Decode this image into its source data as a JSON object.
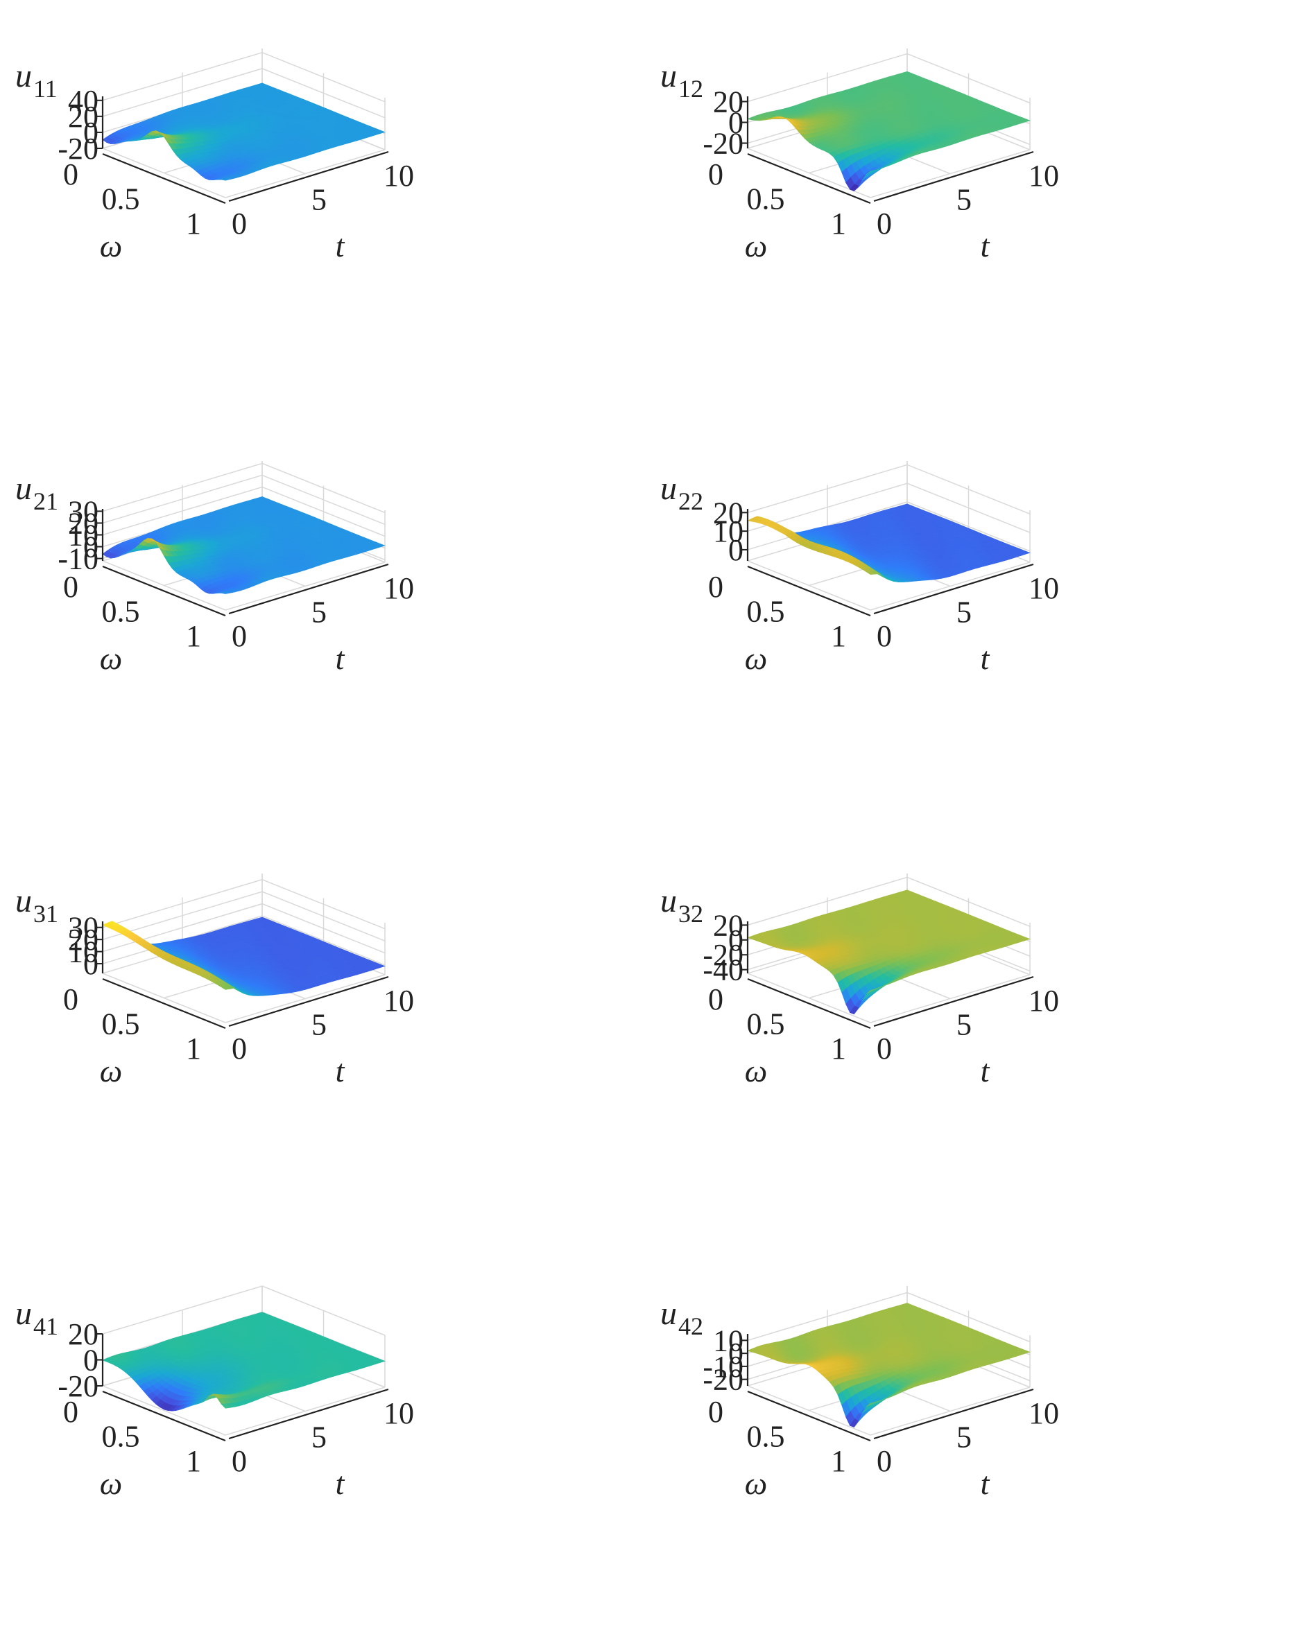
{
  "colormap": [
    "#3e26a8",
    "#4353e0",
    "#2f7df8",
    "#1ba8d5",
    "#25bda0",
    "#7abf55",
    "#d4ba2f",
    "#fcc83a",
    "#f9fb15"
  ],
  "chart_data": [
    {
      "id": "u11",
      "type": "surface3d",
      "zlabel": {
        "main": "u",
        "sub": "11"
      },
      "xlabel": "ω",
      "ylabel": "t",
      "omega_ticks": [
        "0",
        "0.5",
        "1"
      ],
      "t_ticks": [
        "0",
        "5",
        "10"
      ],
      "z_ticks": [
        "40",
        "20",
        "0",
        "-20"
      ],
      "z_tick_values": [
        40,
        20,
        0,
        -20
      ],
      "zlim": [
        -20,
        45
      ],
      "shape": "bump",
      "peak": {
        "omega": 0.45,
        "z": 30
      },
      "trough_z": -17,
      "edge_dip_z": -20,
      "plateau_z": 2,
      "plateau_cbase": 0.35
    },
    {
      "id": "u12",
      "type": "surface3d",
      "zlabel": {
        "main": "u",
        "sub": "12"
      },
      "xlabel": "ω",
      "ylabel": "t",
      "omega_ticks": [
        "0",
        "0.5",
        "1"
      ],
      "t_ticks": [
        "0",
        "5",
        "10"
      ],
      "z_ticks": [
        "20",
        "0",
        "-20"
      ],
      "z_tick_values": [
        20,
        0,
        -20
      ],
      "zlim": [
        -25,
        25
      ],
      "shape": "wave",
      "peak": {
        "omega": 0.3,
        "z": 18
      },
      "trough_z": -28,
      "edge_dip_z": -30,
      "plateau_z": 3,
      "plateau_cbase": 0.5
    },
    {
      "id": "u21",
      "type": "surface3d",
      "zlabel": {
        "main": "u",
        "sub": "21"
      },
      "xlabel": "ω",
      "ylabel": "t",
      "omega_ticks": [
        "0",
        "0.5",
        "1"
      ],
      "t_ticks": [
        "0",
        "5",
        "10"
      ],
      "z_ticks": [
        "30",
        "20",
        "10",
        "0",
        "-10"
      ],
      "z_tick_values": [
        30,
        20,
        10,
        0,
        -10
      ],
      "zlim": [
        -12,
        32
      ],
      "shape": "bump",
      "peak": {
        "omega": 0.4,
        "z": 24
      },
      "trough_z": -12,
      "edge_dip_z": -10,
      "plateau_z": 2,
      "plateau_cbase": 0.38
    },
    {
      "id": "u22",
      "type": "surface3d",
      "zlabel": {
        "main": "u",
        "sub": "22"
      },
      "xlabel": "ω",
      "ylabel": "t",
      "omega_ticks": [
        "0",
        "0.5",
        "1"
      ],
      "t_ticks": [
        "0",
        "5",
        "10"
      ],
      "z_ticks": [
        "20",
        "10",
        "0"
      ],
      "z_tick_values": [
        20,
        10,
        0
      ],
      "zlim": [
        -6,
        22
      ],
      "shape": "ridge",
      "peak": {
        "omega": 0.3,
        "z": 18
      },
      "trough_z": -5,
      "edge_dip_z": -6,
      "plateau_z": -1,
      "plateau_cbase": 0.15
    },
    {
      "id": "u31",
      "type": "surface3d",
      "zlabel": {
        "main": "u",
        "sub": "31"
      },
      "xlabel": "ω",
      "ylabel": "t",
      "omega_ticks": [
        "0",
        "0.5",
        "1"
      ],
      "t_ticks": [
        "0",
        "5",
        "10"
      ],
      "z_ticks": [
        "30",
        "20",
        "10",
        "0"
      ],
      "z_tick_values": [
        30,
        20,
        10,
        0
      ],
      "zlim": [
        -8,
        35
      ],
      "shape": "ridge",
      "peak": {
        "omega": 0.0,
        "z": 32
      },
      "trough_z": -2,
      "edge_dip_z": -5,
      "plateau_z": -1,
      "plateau_cbase": 0.15
    },
    {
      "id": "u32",
      "type": "surface3d",
      "zlabel": {
        "main": "u",
        "sub": "32"
      },
      "xlabel": "ω",
      "ylabel": "t",
      "omega_ticks": [
        "0",
        "0.5",
        "1"
      ],
      "t_ticks": [
        "0",
        "5",
        "10"
      ],
      "z_ticks": [
        "20",
        "0",
        "-20",
        "-40"
      ],
      "z_tick_values": [
        20,
        0,
        -20,
        -40
      ],
      "zlim": [
        -45,
        25
      ],
      "shape": "wave",
      "peak": {
        "omega": 0.45,
        "z": 12
      },
      "trough_z": -45,
      "edge_dip_z": -45,
      "plateau_z": 3,
      "plateau_cbase": 0.55
    },
    {
      "id": "u41",
      "type": "surface3d",
      "zlabel": {
        "main": "u",
        "sub": "41"
      },
      "xlabel": "ω",
      "ylabel": "t",
      "omega_ticks": [
        "0",
        "0.5",
        "1"
      ],
      "t_ticks": [
        "0",
        "5",
        "10"
      ],
      "z_ticks": [
        "20",
        "0",
        "-20"
      ],
      "z_tick_values": [
        20,
        0,
        -20
      ],
      "zlim": [
        -20,
        20
      ],
      "shape": "valley",
      "peak": {
        "omega": 0.9,
        "z": 0
      },
      "trough_z": -18,
      "edge_dip_z": -10,
      "plateau_z": 0,
      "plateau_cbase": 0.5
    },
    {
      "id": "u42",
      "type": "surface3d",
      "zlabel": {
        "main": "u",
        "sub": "42"
      },
      "xlabel": "ω",
      "ylabel": "t",
      "omega_ticks": [
        "0",
        "0.5",
        "1"
      ],
      "t_ticks": [
        "0",
        "5",
        "10"
      ],
      "z_ticks": [
        "10",
        "0",
        "-10",
        "-20"
      ],
      "z_tick_values": [
        10,
        0,
        -10,
        -20
      ],
      "zlim": [
        -25,
        15
      ],
      "shape": "wave",
      "peak": {
        "omega": 0.5,
        "z": 11
      },
      "trough_z": -26,
      "edge_dip_z": -27,
      "plateau_z": 2,
      "plateau_cbase": 0.55
    }
  ]
}
